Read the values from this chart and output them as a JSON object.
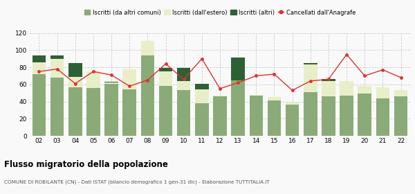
{
  "years": [
    "02",
    "03",
    "04",
    "05",
    "06",
    "07",
    "08",
    "09",
    "10",
    "11",
    "12",
    "13",
    "14",
    "15",
    "16",
    "17",
    "18",
    "19",
    "20",
    "21",
    "22"
  ],
  "iscritti_comuni": [
    72,
    68,
    57,
    56,
    61,
    54,
    94,
    58,
    53,
    38,
    46,
    65,
    47,
    41,
    36,
    51,
    46,
    47,
    49,
    44,
    46
  ],
  "iscritti_estero": [
    14,
    22,
    12,
    19,
    1,
    24,
    17,
    17,
    11,
    16,
    1,
    0,
    1,
    4,
    3,
    32,
    18,
    17,
    9,
    13,
    7
  ],
  "iscritti_altri": [
    8,
    4,
    16,
    0,
    1,
    0,
    0,
    4,
    15,
    7,
    0,
    0,
    0,
    0,
    0,
    2,
    2,
    0,
    0,
    0,
    0
  ],
  "iscritti_altri2": [
    0,
    0,
    0,
    0,
    0,
    0,
    0,
    0,
    0,
    0,
    0,
    26,
    0,
    0,
    0,
    0,
    0,
    0,
    0,
    0,
    0
  ],
  "cancellati": [
    75,
    78,
    61,
    75,
    71,
    58,
    65,
    84,
    66,
    90,
    55,
    62,
    70,
    72,
    53,
    64,
    66,
    95,
    70,
    77,
    68
  ],
  "color_comuni": "#8aab78",
  "color_estero": "#e8efc8",
  "color_altri": "#2d6135",
  "color_cancellati": "#e03030",
  "ylim": [
    0,
    120
  ],
  "yticks": [
    0,
    20,
    40,
    60,
    80,
    100,
    120
  ],
  "title": "Flusso migratorio della popolazione",
  "subtitle": "COMUNE DI ROBILANTE (CN) - Dati ISTAT (bilancio demografico 1 gen-31 dic) - Elaborazione TUTTITALIA.IT",
  "legend_labels": [
    "Iscritti (da altri comuni)",
    "Iscritti (dall'estero)",
    "Iscritti (altri)",
    "Cancellati dall'Anagrafe"
  ],
  "bg_color": "#f9f9f9"
}
